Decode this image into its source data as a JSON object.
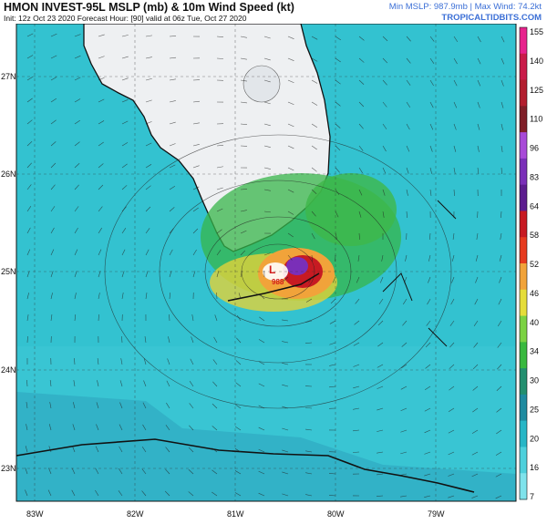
{
  "header": {
    "title": "HMON INVEST-95L MSLP (mb) & 10m Wind Speed (kt)",
    "subtitle": "Init: 12z Oct 23 2020   Forecast Hour: [90]   valid at 06z Tue, Oct 27 2020",
    "stats": "Min MSLP: 987.9mb | Max Wind: 74.2kt",
    "site": "TROPICALTIDBITS.COM"
  },
  "map": {
    "lat_labels": [
      "27N",
      "26N",
      "25N",
      "24N",
      "23N"
    ],
    "lon_labels": [
      "83W",
      "82W",
      "81W",
      "80W",
      "79W"
    ],
    "low_marker": "L",
    "low_pressure": "988",
    "colors": {
      "ocean": "#33c2d0",
      "land": "#eef0f2",
      "storm_core": "#c81e22"
    }
  },
  "colorbar": {
    "ticks": [
      "155",
      "140",
      "125",
      "110",
      "96",
      "83",
      "64",
      "58",
      "52",
      "46",
      "40",
      "34",
      "30",
      "25",
      "20",
      "16",
      "7"
    ],
    "colors": [
      "#e7238d",
      "#c91c4a",
      "#b21e2e",
      "#7f1f28",
      "#a84ad8",
      "#7a2fb8",
      "#5c1d8f",
      "#c71a22",
      "#e63b1f",
      "#f1a33a",
      "#e5dd3a",
      "#7bd243",
      "#39b93f",
      "#238f6f",
      "#1f8ba0",
      "#27b6c6",
      "#4ed0dc",
      "#7fe3ec"
    ]
  }
}
